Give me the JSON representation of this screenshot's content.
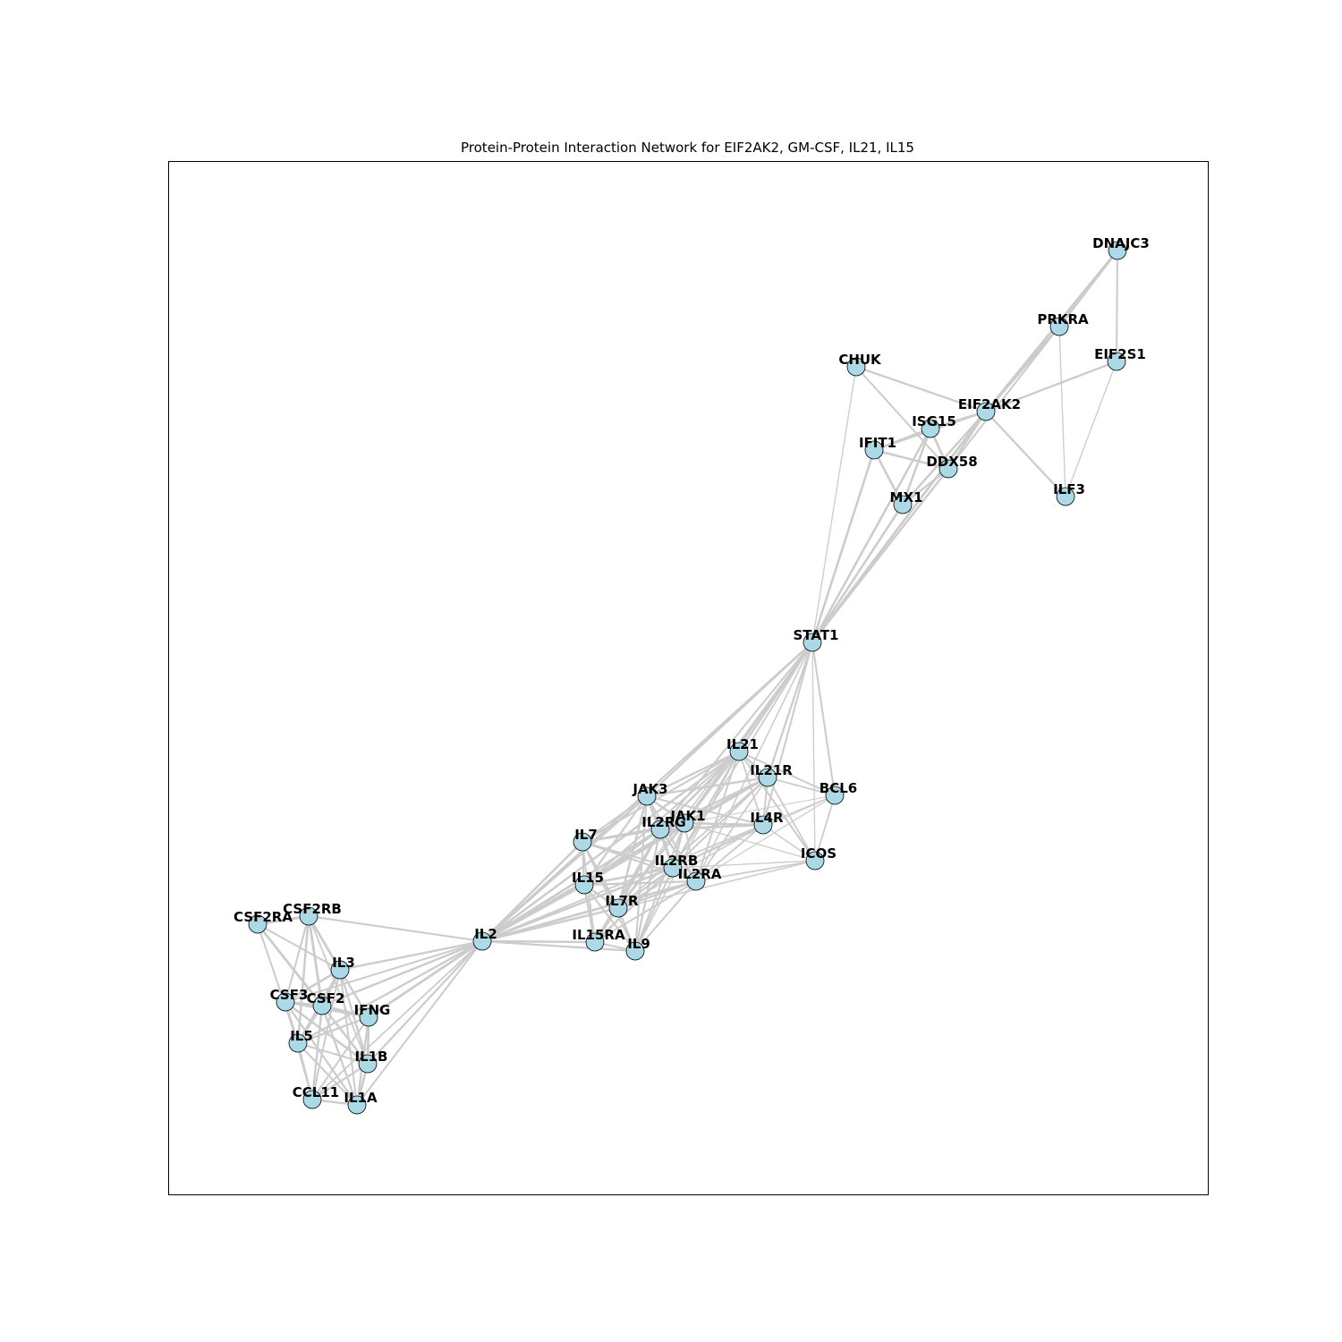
{
  "title": "Protein-Protein Interaction Network for EIF2AK2, GM-CSF, IL21, IL15",
  "colors": {
    "node_fill": "#add8e6",
    "node_stroke": "#000000",
    "edge": "#cccccc",
    "frame": "#000000",
    "background": "#ffffff"
  },
  "nodes": [
    {
      "id": "DNAJC3"
    },
    {
      "id": "PRKRA"
    },
    {
      "id": "EIF2S1"
    },
    {
      "id": "CHUK"
    },
    {
      "id": "EIF2AK2"
    },
    {
      "id": "ISG15"
    },
    {
      "id": "IFIT1"
    },
    {
      "id": "DDX58"
    },
    {
      "id": "ILF3"
    },
    {
      "id": "MX1"
    },
    {
      "id": "STAT1"
    },
    {
      "id": "IL21"
    },
    {
      "id": "IL21R"
    },
    {
      "id": "BCL6"
    },
    {
      "id": "JAK3"
    },
    {
      "id": "JAK1"
    },
    {
      "id": "IL2RG"
    },
    {
      "id": "IL4R"
    },
    {
      "id": "IL7"
    },
    {
      "id": "ICOS"
    },
    {
      "id": "IL2RB"
    },
    {
      "id": "IL2RA"
    },
    {
      "id": "IL15"
    },
    {
      "id": "IL7R"
    },
    {
      "id": "CSF2RB"
    },
    {
      "id": "CSF2RA"
    },
    {
      "id": "IL2"
    },
    {
      "id": "IL15RA"
    },
    {
      "id": "IL9"
    },
    {
      "id": "IL3"
    },
    {
      "id": "CSF3"
    },
    {
      "id": "CSF2"
    },
    {
      "id": "IFNG"
    },
    {
      "id": "IL5"
    },
    {
      "id": "IL1B"
    },
    {
      "id": "CCL11"
    },
    {
      "id": "IL1A"
    }
  ],
  "edges": [
    {
      "source": "DNAJC3",
      "target": "PRKRA",
      "weight": 0.9
    },
    {
      "source": "DNAJC3",
      "target": "EIF2S1",
      "weight": 0.6
    },
    {
      "source": "DNAJC3",
      "target": "EIF2AK2",
      "weight": 0.9
    },
    {
      "source": "PRKRA",
      "target": "EIF2AK2",
      "weight": 1.0
    },
    {
      "source": "PRKRA",
      "target": "ILF3",
      "weight": 0.3
    },
    {
      "source": "PRKRA",
      "target": "DDX58",
      "weight": 0.6
    },
    {
      "source": "EIF2S1",
      "target": "EIF2AK2",
      "weight": 0.7
    },
    {
      "source": "EIF2S1",
      "target": "ILF3",
      "weight": 0.3
    },
    {
      "source": "EIF2AK2",
      "target": "ILF3",
      "weight": 0.7
    },
    {
      "source": "EIF2AK2",
      "target": "CHUK",
      "weight": 0.7
    },
    {
      "source": "EIF2AK2",
      "target": "ISG15",
      "weight": 0.8
    },
    {
      "source": "EIF2AK2",
      "target": "DDX58",
      "weight": 0.8
    },
    {
      "source": "EIF2AK2",
      "target": "MX1",
      "weight": 0.8
    },
    {
      "source": "EIF2AK2",
      "target": "IFIT1",
      "weight": 0.7
    },
    {
      "source": "EIF2AK2",
      "target": "STAT1",
      "weight": 0.9
    },
    {
      "source": "CHUK",
      "target": "DDX58",
      "weight": 0.6
    },
    {
      "source": "CHUK",
      "target": "STAT1",
      "weight": 0.3
    },
    {
      "source": "ISG15",
      "target": "IFIT1",
      "weight": 0.8
    },
    {
      "source": "ISG15",
      "target": "DDX58",
      "weight": 0.8
    },
    {
      "source": "ISG15",
      "target": "MX1",
      "weight": 0.8
    },
    {
      "source": "ISG15",
      "target": "STAT1",
      "weight": 0.8
    },
    {
      "source": "IFIT1",
      "target": "DDX58",
      "weight": 0.8
    },
    {
      "source": "IFIT1",
      "target": "MX1",
      "weight": 0.8
    },
    {
      "source": "IFIT1",
      "target": "STAT1",
      "weight": 0.8
    },
    {
      "source": "DDX58",
      "target": "MX1",
      "weight": 0.7
    },
    {
      "source": "DDX58",
      "target": "STAT1",
      "weight": 0.8
    },
    {
      "source": "MX1",
      "target": "STAT1",
      "weight": 0.8
    },
    {
      "source": "STAT1",
      "target": "IL21",
      "weight": 0.7
    },
    {
      "source": "STAT1",
      "target": "IL21R",
      "weight": 0.7
    },
    {
      "source": "STAT1",
      "target": "BCL6",
      "weight": 0.6
    },
    {
      "source": "STAT1",
      "target": "ICOS",
      "weight": 0.3
    },
    {
      "source": "STAT1",
      "target": "JAK3",
      "weight": 0.7
    },
    {
      "source": "STAT1",
      "target": "JAK1",
      "weight": 0.8
    },
    {
      "source": "STAT1",
      "target": "IL2RG",
      "weight": 0.6
    },
    {
      "source": "STAT1",
      "target": "IL4R",
      "weight": 0.6
    },
    {
      "source": "STAT1",
      "target": "IL2RB",
      "weight": 0.5
    },
    {
      "source": "STAT1",
      "target": "IL2RA",
      "weight": 0.4
    },
    {
      "source": "STAT1",
      "target": "IL2",
      "weight": 0.7
    },
    {
      "source": "STAT1",
      "target": "IL7R",
      "weight": 0.4
    },
    {
      "source": "IL21",
      "target": "IL21R",
      "weight": 0.9
    },
    {
      "source": "IL21",
      "target": "BCL6",
      "weight": 0.6
    },
    {
      "source": "IL21",
      "target": "JAK3",
      "weight": 0.7
    },
    {
      "source": "IL21",
      "target": "JAK1",
      "weight": 0.7
    },
    {
      "source": "IL21",
      "target": "IL2RG",
      "weight": 0.8
    },
    {
      "source": "IL21",
      "target": "IL4R",
      "weight": 0.5
    },
    {
      "source": "IL21",
      "target": "ICOS",
      "weight": 0.6
    },
    {
      "source": "IL21",
      "target": "IL2RB",
      "weight": 0.6
    },
    {
      "source": "IL21",
      "target": "IL2RA",
      "weight": 0.6
    },
    {
      "source": "IL21",
      "target": "IL2",
      "weight": 0.8
    },
    {
      "source": "IL21",
      "target": "IL15",
      "weight": 0.6
    },
    {
      "source": "IL21",
      "target": "IL7",
      "weight": 0.6
    },
    {
      "source": "IL21",
      "target": "IL7R",
      "weight": 0.5
    },
    {
      "source": "IL21",
      "target": "IL9",
      "weight": 0.4
    },
    {
      "source": "IL21R",
      "target": "BCL6",
      "weight": 0.5
    },
    {
      "source": "IL21R",
      "target": "JAK3",
      "weight": 0.7
    },
    {
      "source": "IL21R",
      "target": "JAK1",
      "weight": 0.8
    },
    {
      "source": "IL21R",
      "target": "IL2RG",
      "weight": 0.8
    },
    {
      "source": "IL21R",
      "target": "IL4R",
      "weight": 0.6
    },
    {
      "source": "IL21R",
      "target": "ICOS",
      "weight": 0.5
    },
    {
      "source": "IL21R",
      "target": "IL2RB",
      "weight": 0.6
    },
    {
      "source": "IL21R",
      "target": "IL2RA",
      "weight": 0.5
    },
    {
      "source": "IL21R",
      "target": "IL2",
      "weight": 0.6
    },
    {
      "source": "IL21R",
      "target": "IL15",
      "weight": 0.5
    },
    {
      "source": "IL21R",
      "target": "IL7R",
      "weight": 0.5
    },
    {
      "source": "BCL6",
      "target": "ICOS",
      "weight": 0.5
    },
    {
      "source": "BCL6",
      "target": "IL4R",
      "weight": 0.3
    },
    {
      "source": "BCL6",
      "target": "IL2RA",
      "weight": 0.3
    },
    {
      "source": "BCL6",
      "target": "IL2RB",
      "weight": 0.2
    },
    {
      "source": "BCL6",
      "target": "JAK1",
      "weight": 0.2
    },
    {
      "source": "JAK3",
      "target": "JAK1",
      "weight": 0.8
    },
    {
      "source": "JAK3",
      "target": "IL2RG",
      "weight": 0.9
    },
    {
      "source": "JAK3",
      "target": "IL4R",
      "weight": 0.6
    },
    {
      "source": "JAK3",
      "target": "IL7",
      "weight": 0.7
    },
    {
      "source": "JAK3",
      "target": "IL2RB",
      "weight": 0.8
    },
    {
      "source": "JAK3",
      "target": "IL2RA",
      "weight": 0.6
    },
    {
      "source": "JAK3",
      "target": "IL15",
      "weight": 0.7
    },
    {
      "source": "JAK3",
      "target": "IL7R",
      "weight": 0.8
    },
    {
      "source": "JAK3",
      "target": "IL2",
      "weight": 0.8
    },
    {
      "source": "JAK3",
      "target": "IL9",
      "weight": 0.6
    },
    {
      "source": "JAK1",
      "target": "IL2RG",
      "weight": 0.8
    },
    {
      "source": "JAK1",
      "target": "IL4R",
      "weight": 0.8
    },
    {
      "source": "JAK1",
      "target": "IL7",
      "weight": 0.6
    },
    {
      "source": "JAK1",
      "target": "IL2RB",
      "weight": 0.8
    },
    {
      "source": "JAK1",
      "target": "IL2RA",
      "weight": 0.5
    },
    {
      "source": "JAK1",
      "target": "IL15",
      "weight": 0.6
    },
    {
      "source": "JAK1",
      "target": "IL7R",
      "weight": 0.8
    },
    {
      "source": "JAK1",
      "target": "IL2",
      "weight": 0.7
    },
    {
      "source": "JAK1",
      "target": "IL9",
      "weight": 0.6
    },
    {
      "source": "JAK1",
      "target": "ICOS",
      "weight": 0.3
    },
    {
      "source": "IL2RG",
      "target": "IL4R",
      "weight": 0.8
    },
    {
      "source": "IL2RG",
      "target": "IL7",
      "weight": 0.8
    },
    {
      "source": "IL2RG",
      "target": "IL2RB",
      "weight": 0.9
    },
    {
      "source": "IL2RG",
      "target": "IL2RA",
      "weight": 0.8
    },
    {
      "source": "IL2RG",
      "target": "IL15",
      "weight": 0.8
    },
    {
      "source": "IL2RG",
      "target": "IL7R",
      "weight": 0.9
    },
    {
      "source": "IL2RG",
      "target": "IL2",
      "weight": 0.9
    },
    {
      "source": "IL2RG",
      "target": "IL15RA",
      "weight": 0.7
    },
    {
      "source": "IL2RG",
      "target": "IL9",
      "weight": 0.7
    },
    {
      "source": "IL4R",
      "target": "IL2RB",
      "weight": 0.5
    },
    {
      "source": "IL4R",
      "target": "IL2RA",
      "weight": 0.5
    },
    {
      "source": "IL4R",
      "target": "ICOS",
      "weight": 0.4
    },
    {
      "source": "IL4R",
      "target": "IL7R",
      "weight": 0.4
    },
    {
      "source": "IL4R",
      "target": "IL2",
      "weight": 0.5
    },
    {
      "source": "IL7",
      "target": "IL7R",
      "weight": 0.9
    },
    {
      "source": "IL7",
      "target": "IL15",
      "weight": 0.7
    },
    {
      "source": "IL7",
      "target": "IL2",
      "weight": 0.8
    },
    {
      "source": "IL7",
      "target": "IL2RB",
      "weight": 0.6
    },
    {
      "source": "IL7",
      "target": "IL2RA",
      "weight": 0.6
    },
    {
      "source": "IL7",
      "target": "IL9",
      "weight": 0.6
    },
    {
      "source": "IL7",
      "target": "IL15RA",
      "weight": 0.5
    },
    {
      "source": "ICOS",
      "target": "IL2RA",
      "weight": 0.5
    },
    {
      "source": "ICOS",
      "target": "IL2",
      "weight": 0.4
    },
    {
      "source": "ICOS",
      "target": "IL2RB",
      "weight": 0.3
    },
    {
      "source": "IL2RB",
      "target": "IL2RA",
      "weight": 0.9
    },
    {
      "source": "IL2RB",
      "target": "IL15",
      "weight": 0.8
    },
    {
      "source": "IL2RB",
      "target": "IL7R",
      "weight": 0.7
    },
    {
      "source": "IL2RB",
      "target": "IL2",
      "weight": 0.9
    },
    {
      "source": "IL2RB",
      "target": "IL15RA",
      "weight": 0.8
    },
    {
      "source": "IL2RB",
      "target": "IL9",
      "weight": 0.6
    },
    {
      "source": "IL2RA",
      "target": "IL15",
      "weight": 0.7
    },
    {
      "source": "IL2RA",
      "target": "IL7R",
      "weight": 0.7
    },
    {
      "source": "IL2RA",
      "target": "IL2",
      "weight": 0.9
    },
    {
      "source": "IL2RA",
      "target": "IL15RA",
      "weight": 0.6
    },
    {
      "source": "IL2RA",
      "target": "IL9",
      "weight": 0.6
    },
    {
      "source": "IL15",
      "target": "IL7R",
      "weight": 0.7
    },
    {
      "source": "IL15",
      "target": "IL2",
      "weight": 0.8
    },
    {
      "source": "IL15",
      "target": "IL15RA",
      "weight": 0.9
    },
    {
      "source": "IL15",
      "target": "IL9",
      "weight": 0.6
    },
    {
      "source": "IL7R",
      "target": "IL2",
      "weight": 0.8
    },
    {
      "source": "IL7R",
      "target": "IL15RA",
      "weight": 0.6
    },
    {
      "source": "IL7R",
      "target": "IL9",
      "weight": 0.6
    },
    {
      "source": "IL15RA",
      "target": "IL2",
      "weight": 0.8
    },
    {
      "source": "IL15RA",
      "target": "IL9",
      "weight": 0.6
    },
    {
      "source": "IL9",
      "target": "IL2",
      "weight": 0.7
    },
    {
      "source": "IL2",
      "target": "CSF2RB",
      "weight": 0.6
    },
    {
      "source": "IL2",
      "target": "IL3",
      "weight": 0.7
    },
    {
      "source": "IL2",
      "target": "CSF2",
      "weight": 0.8
    },
    {
      "source": "IL2",
      "target": "IFNG",
      "weight": 0.9
    },
    {
      "source": "IL2",
      "target": "IL5",
      "weight": 0.7
    },
    {
      "source": "IL2",
      "target": "IL1B",
      "weight": 0.7
    },
    {
      "source": "IL2",
      "target": "IL1A",
      "weight": 0.6
    },
    {
      "source": "IL2",
      "target": "CSF3",
      "weight": 0.6
    },
    {
      "source": "IL2",
      "target": "CCL11",
      "weight": 0.5
    },
    {
      "source": "CSF2RA",
      "target": "CSF2RB",
      "weight": 0.9
    },
    {
      "source": "CSF2RA",
      "target": "CSF2",
      "weight": 0.9
    },
    {
      "source": "CSF2RA",
      "target": "IL3",
      "weight": 0.6
    },
    {
      "source": "CSF2RA",
      "target": "IL5",
      "weight": 0.6
    },
    {
      "source": "CSF2RB",
      "target": "IL3",
      "weight": 0.9
    },
    {
      "source": "CSF2RB",
      "target": "CSF2",
      "weight": 0.9
    },
    {
      "source": "CSF2RB",
      "target": "IL5",
      "weight": 0.8
    },
    {
      "source": "CSF2RB",
      "target": "CSF3",
      "weight": 0.6
    },
    {
      "source": "CSF2RB",
      "target": "IFNG",
      "weight": 0.5
    },
    {
      "source": "CSF2RB",
      "target": "IL1B",
      "weight": 0.5
    },
    {
      "source": "IL3",
      "target": "CSF2",
      "weight": 0.9
    },
    {
      "source": "IL3",
      "target": "IL5",
      "weight": 0.8
    },
    {
      "source": "IL3",
      "target": "CSF3",
      "weight": 0.8
    },
    {
      "source": "IL3",
      "target": "IFNG",
      "weight": 0.7
    },
    {
      "source": "IL3",
      "target": "IL1B",
      "weight": 0.7
    },
    {
      "source": "IL3",
      "target": "IL1A",
      "weight": 0.6
    },
    {
      "source": "IL3",
      "target": "CCL11",
      "weight": 0.6
    },
    {
      "source": "CSF3",
      "target": "CSF2",
      "weight": 0.9
    },
    {
      "source": "CSF3",
      "target": "IL5",
      "weight": 0.7
    },
    {
      "source": "CSF3",
      "target": "IFNG",
      "weight": 0.7
    },
    {
      "source": "CSF3",
      "target": "IL1B",
      "weight": 0.8
    },
    {
      "source": "CSF3",
      "target": "IL1A",
      "weight": 0.7
    },
    {
      "source": "CSF3",
      "target": "CCL11",
      "weight": 0.6
    },
    {
      "source": "CSF2",
      "target": "IFNG",
      "weight": 0.9
    },
    {
      "source": "CSF2",
      "target": "IL5",
      "weight": 0.8
    },
    {
      "source": "CSF2",
      "target": "IL1B",
      "weight": 0.8
    },
    {
      "source": "CSF2",
      "target": "IL1A",
      "weight": 0.7
    },
    {
      "source": "CSF2",
      "target": "CCL11",
      "weight": 0.7
    },
    {
      "source": "IFNG",
      "target": "IL5",
      "weight": 0.7
    },
    {
      "source": "IFNG",
      "target": "IL1B",
      "weight": 0.9
    },
    {
      "source": "IFNG",
      "target": "IL1A",
      "weight": 0.7
    },
    {
      "source": "IFNG",
      "target": "CCL11",
      "weight": 0.6
    },
    {
      "source": "IL5",
      "target": "IL1B",
      "weight": 0.6
    },
    {
      "source": "IL5",
      "target": "CCL11",
      "weight": 0.8
    },
    {
      "source": "IL5",
      "target": "IL1A",
      "weight": 0.6
    },
    {
      "source": "IL1B",
      "target": "IL1A",
      "weight": 0.9
    },
    {
      "source": "IL1B",
      "target": "CCL11",
      "weight": 0.7
    },
    {
      "source": "IL1A",
      "target": "CCL11",
      "weight": 0.7
    }
  ]
}
